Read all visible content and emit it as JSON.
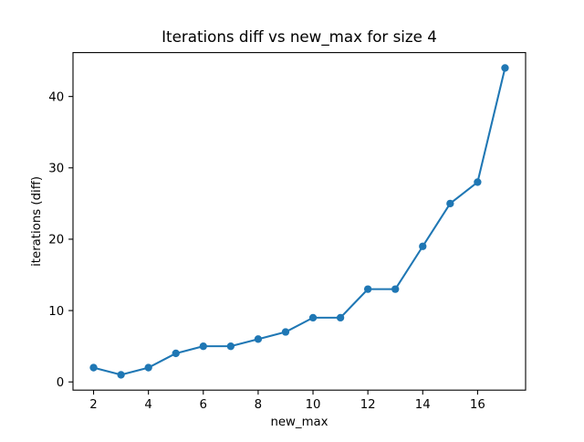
{
  "chart_data": {
    "type": "line",
    "title": "Iterations diff vs new_max for size 4",
    "xlabel": "new_max",
    "ylabel": "iterations (diff)",
    "x": [
      2,
      3,
      4,
      5,
      6,
      7,
      8,
      9,
      10,
      11,
      12,
      13,
      14,
      15,
      16,
      17
    ],
    "values": [
      2,
      1,
      2,
      4,
      5,
      5,
      6,
      7,
      9,
      9,
      13,
      13,
      19,
      25,
      28,
      44
    ],
    "series_name": "iterations diff",
    "xlim": [
      1.25,
      17.75
    ],
    "ylim": [
      -1.15,
      46.15
    ],
    "x_ticks": [
      2,
      4,
      6,
      8,
      10,
      12,
      14,
      16
    ],
    "y_ticks": [
      0,
      10,
      20,
      30,
      40
    ],
    "grid": false,
    "legend": null,
    "line_color": "#1f77b4",
    "marker": "o",
    "background_color": "#ffffff",
    "spine_color": "#000000"
  }
}
